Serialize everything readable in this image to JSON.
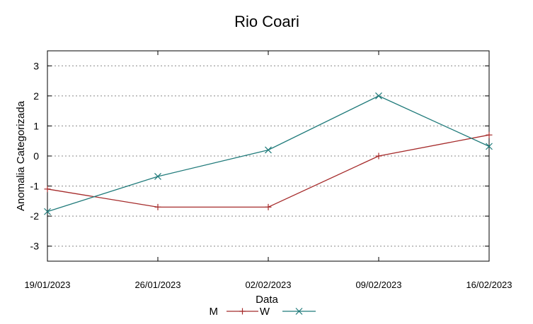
{
  "chart_data": {
    "type": "line",
    "title": "Rio Coari",
    "xlabel": "Data",
    "ylabel": "Anomalia Categorizada",
    "categories": [
      "19/01/2023",
      "26/01/2023",
      "02/02/2023",
      "09/02/2023",
      "16/02/2023"
    ],
    "yticks": [
      3,
      2,
      1,
      0,
      -1,
      -2,
      -3
    ],
    "ylim": [
      -3.5,
      3.5
    ],
    "grid": "horizontal-dotted",
    "legend_position": "bottom-center",
    "series": [
      {
        "name": "M",
        "values": [
          -1.1,
          -1.7,
          -1.7,
          0.0,
          0.7
        ],
        "color": "#a52a2a",
        "marker": "plus"
      },
      {
        "name": "W",
        "values": [
          -1.85,
          -0.68,
          0.2,
          2.0,
          0.32
        ],
        "color": "#1f7a7a",
        "marker": "cross"
      }
    ]
  }
}
